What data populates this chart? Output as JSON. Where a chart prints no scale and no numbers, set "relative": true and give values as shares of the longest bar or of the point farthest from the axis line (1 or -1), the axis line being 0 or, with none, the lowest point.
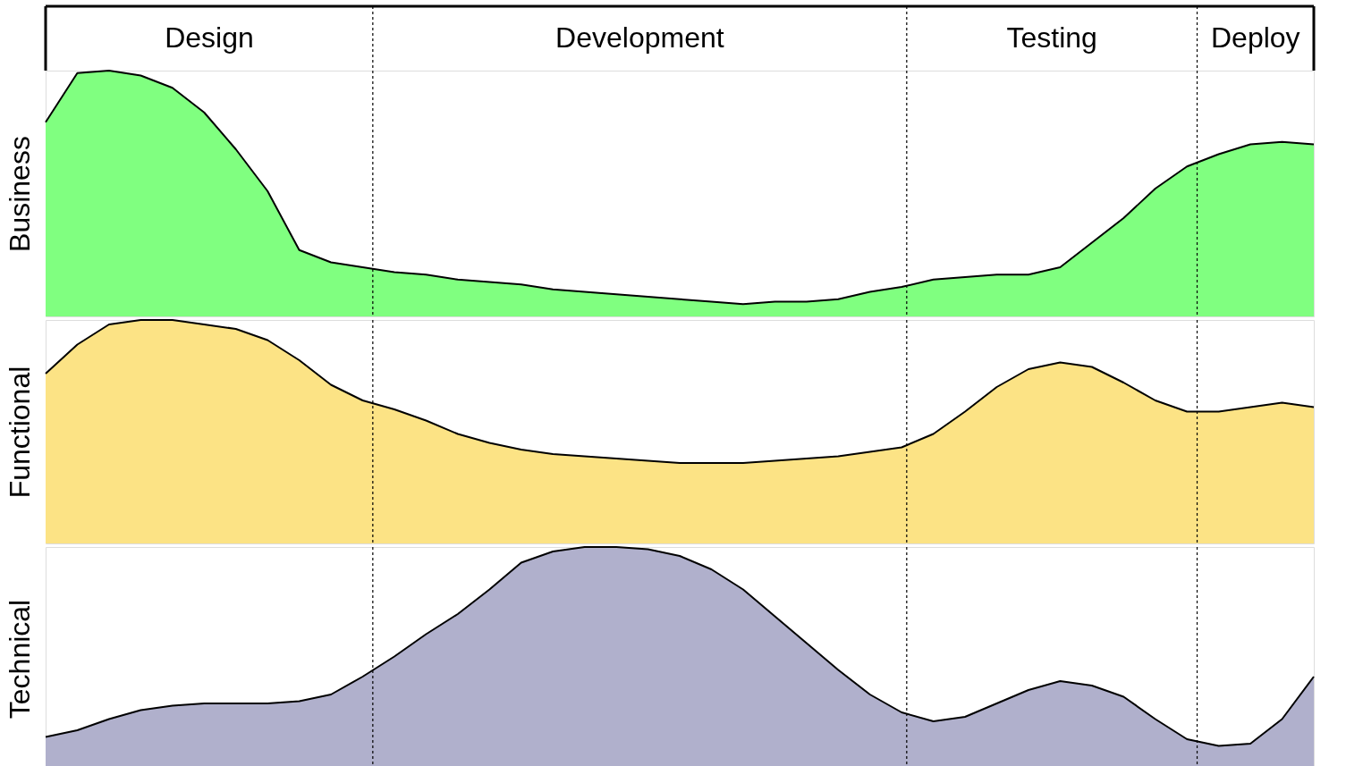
{
  "chart_data": [
    {
      "type": "area",
      "ylabel": "Business",
      "relative": true,
      "tick_labels": false,
      "categories": [
        null,
        null,
        null,
        null,
        null,
        null,
        null,
        null,
        null,
        null,
        null,
        null,
        null,
        null,
        null,
        null,
        null,
        null,
        null,
        null,
        null,
        null,
        null,
        null,
        null,
        null,
        null,
        null,
        null,
        null,
        null,
        null,
        null,
        null,
        null,
        null,
        null,
        null,
        null,
        null,
        null
      ],
      "annotations": [
        "Design",
        "Development",
        "Testing",
        "Deploy"
      ],
      "series": [
        {
          "color": "#80ff80",
          "values": [
            0.79,
            0.99,
            1,
            0.98,
            0.93,
            0.83,
            0.68,
            0.51,
            0.27,
            0.22,
            0.2,
            0.18,
            0.17,
            0.15,
            0.14,
            0.13,
            0.11,
            0.1,
            0.09,
            0.08,
            0.07,
            0.06,
            0.05,
            0.06,
            0.06,
            0.07,
            0.1,
            0.12,
            0.15,
            0.16,
            0.17,
            0.17,
            0.2,
            0.3,
            0.4,
            0.52,
            0.61,
            0.66,
            0.7,
            0.71,
            0.7
          ]
        }
      ]
    },
    {
      "type": "area",
      "ylabel": "Functional",
      "relative": true,
      "tick_labels": false,
      "categories": [
        null,
        null,
        null,
        null,
        null,
        null,
        null,
        null,
        null,
        null,
        null,
        null,
        null,
        null,
        null,
        null,
        null,
        null,
        null,
        null,
        null,
        null,
        null,
        null,
        null,
        null,
        null,
        null,
        null,
        null,
        null,
        null,
        null,
        null,
        null,
        null,
        null,
        null,
        null,
        null,
        null
      ],
      "series": [
        {
          "color": "#fce385",
          "values": [
            0.76,
            0.89,
            0.98,
            1,
            1,
            0.98,
            0.96,
            0.91,
            0.82,
            0.71,
            0.64,
            0.6,
            0.55,
            0.49,
            0.45,
            0.42,
            0.4,
            0.39,
            0.38,
            0.37,
            0.36,
            0.36,
            0.36,
            0.37,
            0.38,
            0.39,
            0.41,
            0.43,
            0.49,
            0.59,
            0.7,
            0.78,
            0.81,
            0.79,
            0.72,
            0.64,
            0.59,
            0.59,
            0.61,
            0.63,
            0.61
          ]
        }
      ]
    },
    {
      "type": "area",
      "ylabel": "Technical",
      "relative": true,
      "tick_labels": false,
      "categories": [
        null,
        null,
        null,
        null,
        null,
        null,
        null,
        null,
        null,
        null,
        null,
        null,
        null,
        null,
        null,
        null,
        null,
        null,
        null,
        null,
        null,
        null,
        null,
        null,
        null,
        null,
        null,
        null,
        null,
        null,
        null,
        null,
        null,
        null,
        null,
        null,
        null,
        null,
        null,
        null,
        null
      ],
      "series": [
        {
          "color": "#b0b0cc",
          "values": [
            0.15,
            0.18,
            0.23,
            0.27,
            0.29,
            0.3,
            0.3,
            0.3,
            0.31,
            0.34,
            0.42,
            0.51,
            0.61,
            0.7,
            0.81,
            0.93,
            0.98,
            1,
            1,
            0.99,
            0.96,
            0.9,
            0.81,
            0.69,
            0.57,
            0.45,
            0.34,
            0.26,
            0.22,
            0.24,
            0.3,
            0.36,
            0.4,
            0.38,
            0.33,
            0.23,
            0.14,
            0.11,
            0.12,
            0.23,
            0.42
          ]
        }
      ]
    }
  ]
}
